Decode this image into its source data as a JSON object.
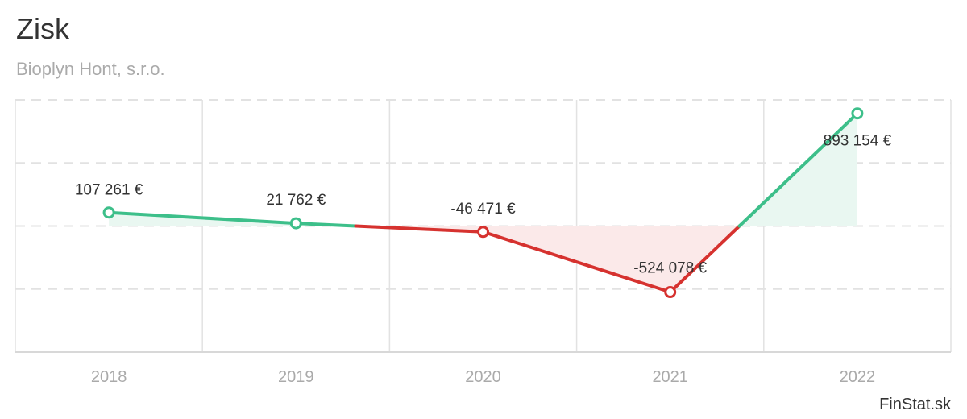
{
  "chart_data": {
    "type": "line",
    "title": "Zisk",
    "subtitle": "Bioplyn Hont, s.r.o.",
    "credit": "FinStat.sk",
    "categories": [
      "2018",
      "2019",
      "2020",
      "2021",
      "2022"
    ],
    "values": [
      107261,
      21762,
      -46471,
      -524078,
      893154
    ],
    "value_labels": [
      "107 261 €",
      "21 762 €",
      "-46 471 €",
      "-524 078 €",
      "893 154 €"
    ],
    "ylim": [
      -1000000,
      1000000
    ],
    "grid": true,
    "legend": "none",
    "colors": {
      "positive": "#3dbf8a",
      "negative": "#d6322f",
      "positive_fill": "#e9f7f1",
      "negative_fill": "#fbe9e9",
      "grid": "#e2e2e2"
    }
  }
}
